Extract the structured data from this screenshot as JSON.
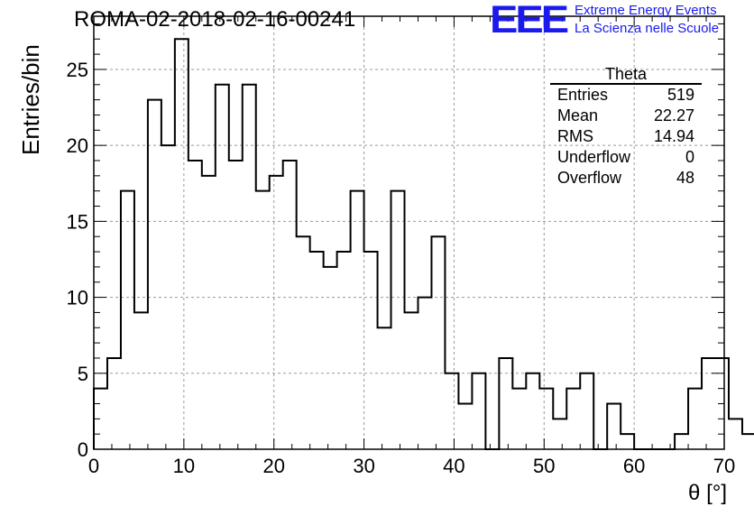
{
  "title": "ROMA-02-2018-02-16-00241",
  "logo": {
    "mark": "EEE",
    "line1": "Extreme Energy Events",
    "line2": "La Scienza nelle Scuole",
    "color": "#1a1aee"
  },
  "stats": {
    "header": "Theta",
    "rows": [
      {
        "label": "Entries",
        "value": "519"
      },
      {
        "label": "Mean",
        "value": "22.27"
      },
      {
        "label": "RMS",
        "value": "14.94"
      },
      {
        "label": "Underflow",
        "value": "0"
      },
      {
        "label": "Overflow",
        "value": "48"
      }
    ]
  },
  "chart_data": {
    "type": "bar",
    "style": "step-histogram",
    "xlabel": "θ [°]",
    "ylabel": "Entries/bin",
    "xlim": [
      0,
      70
    ],
    "ylim": [
      0,
      28.5
    ],
    "bin_width": 1.5,
    "x_ticks": [
      0,
      10,
      20,
      30,
      40,
      50,
      60,
      70
    ],
    "y_ticks": [
      0,
      5,
      10,
      15,
      20,
      25
    ],
    "grid": true,
    "values": [
      4,
      6,
      17,
      9,
      23,
      20,
      27,
      19,
      18,
      24,
      19,
      24,
      17,
      18,
      19,
      14,
      13,
      12,
      13,
      17,
      13,
      8,
      17,
      9,
      10,
      14,
      5,
      3,
      5,
      0,
      6,
      4,
      5,
      4,
      2,
      4,
      5,
      0,
      3,
      1,
      0,
      0,
      0,
      1,
      4,
      6,
      6,
      2,
      1
    ]
  }
}
